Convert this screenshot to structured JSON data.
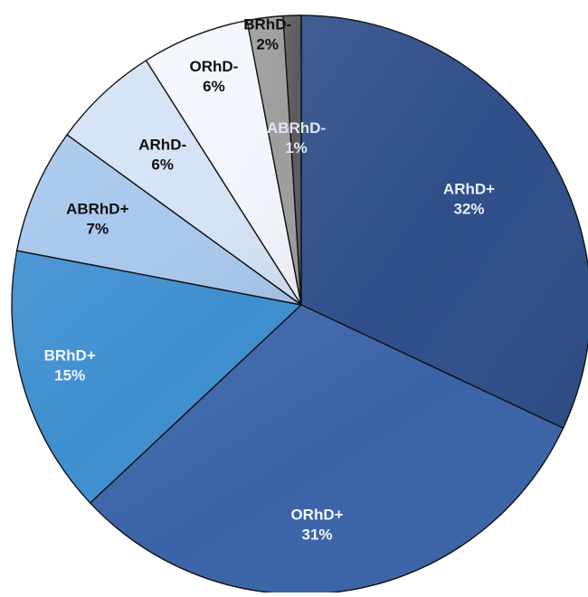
{
  "chart_data": {
    "type": "pie",
    "title": "",
    "legend": "none",
    "slices": [
      {
        "label": "ARhD+",
        "value": 32,
        "value_label": "32%",
        "color": "#2f4f8a",
        "text_color": "#e8eef8"
      },
      {
        "label": "ORhD+",
        "value": 31,
        "value_label": "31%",
        "color": "#3a64a8",
        "text_color": "#f2f5fb"
      },
      {
        "label": "BRhD+",
        "value": 15,
        "value_label": "15%",
        "color": "#3e8fd0",
        "text_color": "#f2f6fc"
      },
      {
        "label": "ABRhD+",
        "value": 7,
        "value_label": "7%",
        "color": "#a8c8ec",
        "text_color": "#111111"
      },
      {
        "label": "ARhD-",
        "value": 6,
        "value_label": "6%",
        "color": "#d4e4f6",
        "text_color": "#111111"
      },
      {
        "label": "ORhD-",
        "value": 6,
        "value_label": "6%",
        "color": "#f3f7fd",
        "text_color": "#111111"
      },
      {
        "label": "BRhD-",
        "value": 2,
        "value_label": "2%",
        "color": "#9e9e9e",
        "text_color": "#111111"
      },
      {
        "label": "ABRhD-",
        "value": 1,
        "value_label": "1%",
        "color": "#5c5c5c",
        "text_color": "#dfe6f2"
      }
    ]
  }
}
